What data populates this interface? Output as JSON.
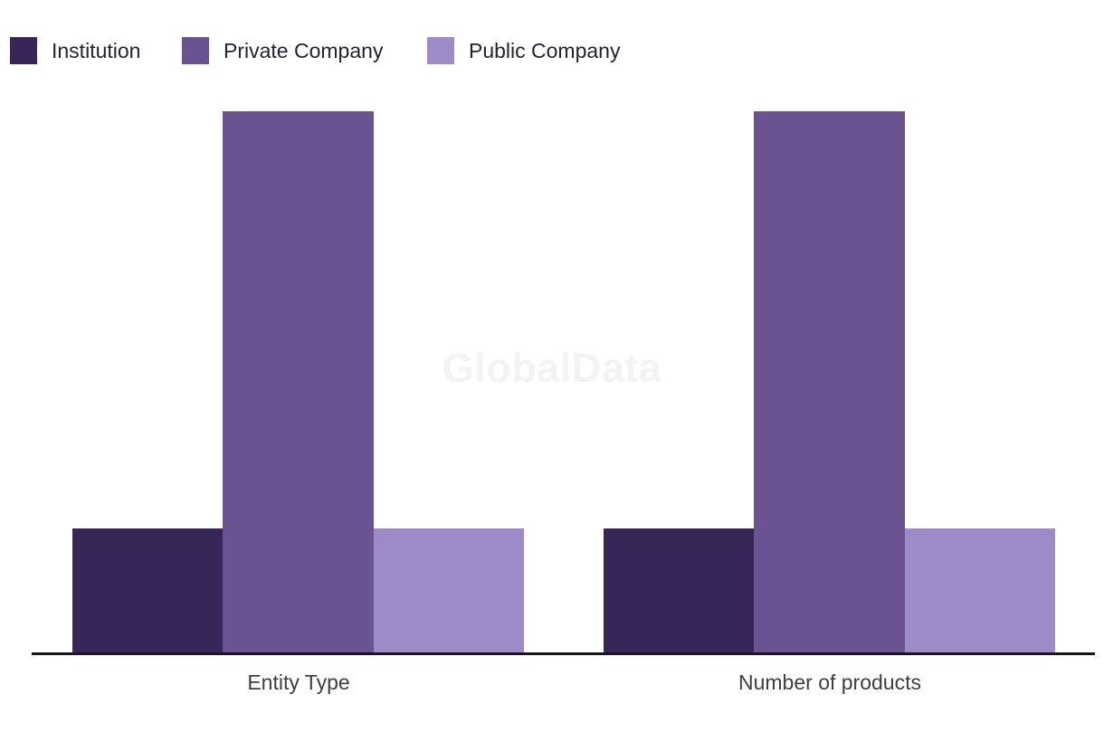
{
  "watermark": "GlobalData",
  "legend": {
    "items": [
      {
        "label": "Institution",
        "color": "#372657"
      },
      {
        "label": "Private Company",
        "color": "#6a5390"
      },
      {
        "label": "Public Company",
        "color": "#9e8ac6"
      }
    ]
  },
  "chart_data": {
    "type": "bar",
    "title": "",
    "xlabel": "",
    "ylabel": "",
    "categories": [
      "Entity Type",
      "Number of products"
    ],
    "series": [
      {
        "name": "Institution",
        "color": "#372657",
        "values": [
          23,
          23
        ]
      },
      {
        "name": "Private Company",
        "color": "#6a5390",
        "values": [
          100,
          100
        ]
      },
      {
        "name": "Public Company",
        "color": "#9e8ac6",
        "values": [
          23,
          23
        ]
      }
    ],
    "ylim": [
      0,
      100
    ],
    "grid": false,
    "y_axis_shown": false,
    "legend_position": "top-left",
    "note": "No y-axis, gridlines or value labels are visible; values are relative bar heights normalized so the tallest bar = 100."
  },
  "colors": {
    "axis_line": "#191327",
    "category_label_text": "#3e3e3e",
    "legend_text": "#232038",
    "watermark_text": "#f3f3f5",
    "background": "#ffffff"
  }
}
